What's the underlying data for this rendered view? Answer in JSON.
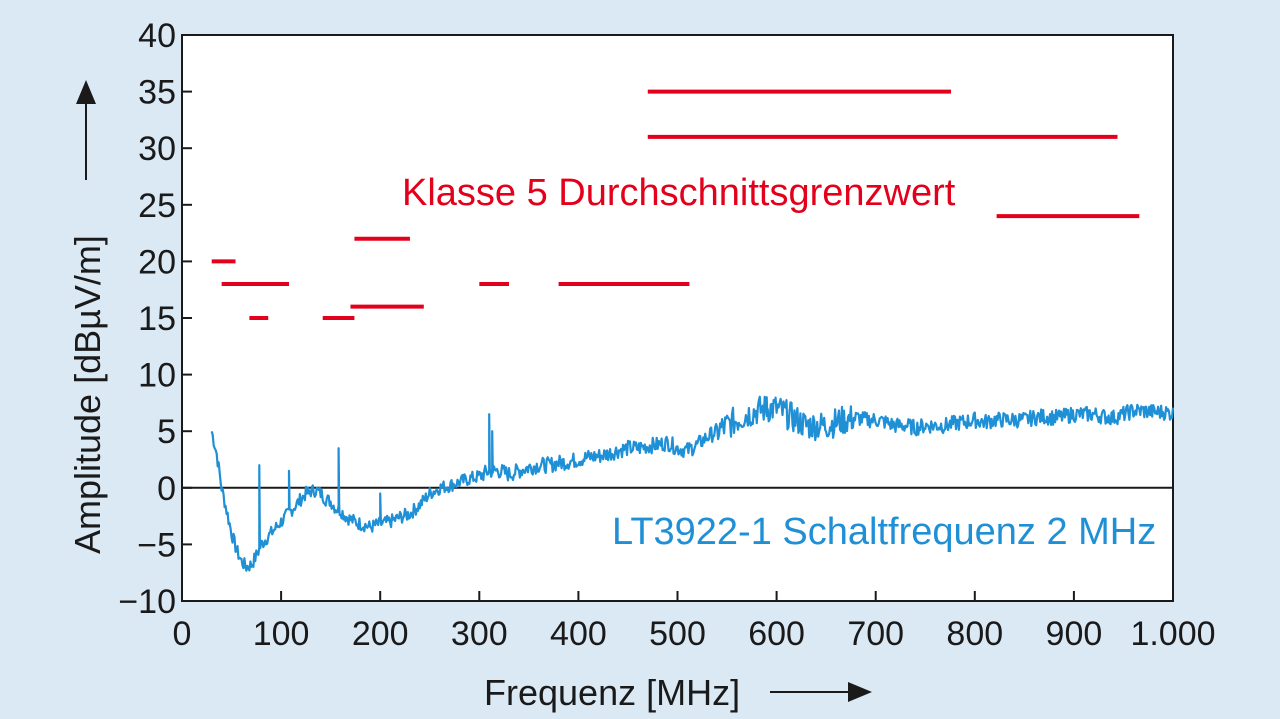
{
  "chart_data": {
    "type": "line",
    "xlabel": "Frequenz [MHz]",
    "ylabel": "Amplitude [dBµV/m]",
    "xlim": [
      0,
      1000
    ],
    "ylim": [
      -10,
      40
    ],
    "x_ticks": [
      0,
      100,
      200,
      300,
      400,
      500,
      600,
      700,
      800,
      900,
      1000
    ],
    "x_tick_labels": [
      "0",
      "100",
      "200",
      "300",
      "400",
      "500",
      "600",
      "700",
      "800",
      "900",
      "1.000"
    ],
    "y_ticks": [
      -10,
      -5,
      0,
      5,
      10,
      15,
      20,
      25,
      30,
      35,
      40
    ],
    "y_tick_labels": [
      "−10",
      "−5",
      "0",
      "5",
      "10",
      "15",
      "20",
      "25",
      "30",
      "35",
      "40"
    ],
    "grid": false,
    "zero_line": true,
    "annotations": [
      {
        "text": "Klasse 5 Durchschnittsgrenzwert",
        "color": "#e3001b"
      },
      {
        "text": "LT3922-1 Schaltfrequenz 2 MHz",
        "color": "#1f8fd6"
      }
    ],
    "limit_segments": {
      "color": "#e3001b",
      "segments": [
        {
          "x": [
            30,
            54
          ],
          "y": 20
        },
        {
          "x": [
            40,
            108
          ],
          "y": 18
        },
        {
          "x": [
            68,
            87
          ],
          "y": 15
        },
        {
          "x": [
            142,
            174
          ],
          "y": 15
        },
        {
          "x": [
            174,
            230
          ],
          "y": 22
        },
        {
          "x": [
            170,
            244
          ],
          "y": 16
        },
        {
          "x": [
            300,
            330
          ],
          "y": 18
        },
        {
          "x": [
            380,
            512
          ],
          "y": 18
        },
        {
          "x": [
            470,
            776
          ],
          "y": 35
        },
        {
          "x": [
            470,
            944
          ],
          "y": 31
        },
        {
          "x": [
            822,
            966
          ],
          "y": 24
        }
      ]
    },
    "series": [
      {
        "color": "#1f8fd6",
        "points": [
          [
            30,
            5
          ],
          [
            35,
            3
          ],
          [
            40,
            0
          ],
          [
            45,
            -2
          ],
          [
            50,
            -4
          ],
          [
            55,
            -5.5
          ],
          [
            60,
            -6.5
          ],
          [
            65,
            -7
          ],
          [
            70,
            -6.8
          ],
          [
            75,
            -6
          ],
          [
            80,
            -5
          ],
          [
            85,
            -4.5
          ],
          [
            90,
            -4
          ],
          [
            95,
            -3.5
          ],
          [
            100,
            -3
          ],
          [
            105,
            -2.5
          ],
          [
            110,
            -2
          ],
          [
            115,
            -1.5
          ],
          [
            120,
            -1
          ],
          [
            125,
            -0.5
          ],
          [
            130,
            -0.3
          ],
          [
            135,
            -0.2
          ],
          [
            140,
            -0.5
          ],
          [
            145,
            -1
          ],
          [
            150,
            -1.2
          ],
          [
            155,
            -1.8
          ],
          [
            160,
            -2
          ],
          [
            165,
            -2.5
          ],
          [
            170,
            -2.8
          ],
          [
            175,
            -3
          ],
          [
            180,
            -3.2
          ],
          [
            185,
            -3.3
          ],
          [
            190,
            -3.5
          ],
          [
            195,
            -3.3
          ],
          [
            200,
            -3.2
          ],
          [
            210,
            -3
          ],
          [
            220,
            -2.6
          ],
          [
            230,
            -2.3
          ],
          [
            240,
            -1.5
          ],
          [
            250,
            -0.5
          ],
          [
            260,
            0
          ],
          [
            270,
            0.2
          ],
          [
            280,
            0.5
          ],
          [
            290,
            0.8
          ],
          [
            300,
            1
          ],
          [
            310,
            1.5
          ],
          [
            320,
            1.5
          ],
          [
            330,
            1.2
          ],
          [
            340,
            1.5
          ],
          [
            350,
            1.8
          ],
          [
            360,
            2
          ],
          [
            370,
            2
          ],
          [
            380,
            2.2
          ],
          [
            390,
            2.3
          ],
          [
            400,
            2.5
          ],
          [
            410,
            2.7
          ],
          [
            420,
            2.8
          ],
          [
            430,
            3
          ],
          [
            440,
            3.3
          ],
          [
            450,
            3.5
          ],
          [
            460,
            3.5
          ],
          [
            470,
            3.7
          ],
          [
            480,
            3.8
          ],
          [
            490,
            4
          ],
          [
            500,
            3.5
          ],
          [
            510,
            3.3
          ],
          [
            520,
            3.8
          ],
          [
            530,
            4.5
          ],
          [
            540,
            5
          ],
          [
            550,
            5.5
          ],
          [
            560,
            6
          ],
          [
            570,
            6.5
          ],
          [
            580,
            6.8
          ],
          [
            590,
            7
          ],
          [
            600,
            7
          ],
          [
            610,
            6.5
          ],
          [
            620,
            6
          ],
          [
            630,
            5.5
          ],
          [
            640,
            5.5
          ],
          [
            650,
            5.5
          ],
          [
            660,
            5.8
          ],
          [
            670,
            6
          ],
          [
            680,
            6.2
          ],
          [
            690,
            6
          ],
          [
            700,
            6
          ],
          [
            710,
            5.8
          ],
          [
            720,
            5.5
          ],
          [
            730,
            5.5
          ],
          [
            740,
            5.3
          ],
          [
            750,
            5.5
          ],
          [
            760,
            5.5
          ],
          [
            770,
            5.5
          ],
          [
            780,
            5.7
          ],
          [
            790,
            5.8
          ],
          [
            800,
            6
          ],
          [
            810,
            5.8
          ],
          [
            820,
            6
          ],
          [
            830,
            6
          ],
          [
            840,
            6
          ],
          [
            850,
            6
          ],
          [
            860,
            6.2
          ],
          [
            870,
            6.3
          ],
          [
            880,
            6.2
          ],
          [
            890,
            6.3
          ],
          [
            900,
            6.5
          ],
          [
            910,
            6.5
          ],
          [
            920,
            6.5
          ],
          [
            930,
            6.3
          ],
          [
            940,
            6.2
          ],
          [
            950,
            6.5
          ],
          [
            960,
            6.8
          ],
          [
            970,
            6.8
          ],
          [
            980,
            6.7
          ],
          [
            990,
            6.7
          ],
          [
            1000,
            6.6
          ]
        ],
        "spikes": [
          [
            78,
            2
          ],
          [
            108,
            1.5
          ],
          [
            128,
            -0.5
          ],
          [
            158,
            3.5
          ],
          [
            200,
            -0.5
          ],
          [
            310,
            6.5
          ],
          [
            313,
            5
          ],
          [
            590,
            8
          ]
        ]
      }
    ]
  }
}
